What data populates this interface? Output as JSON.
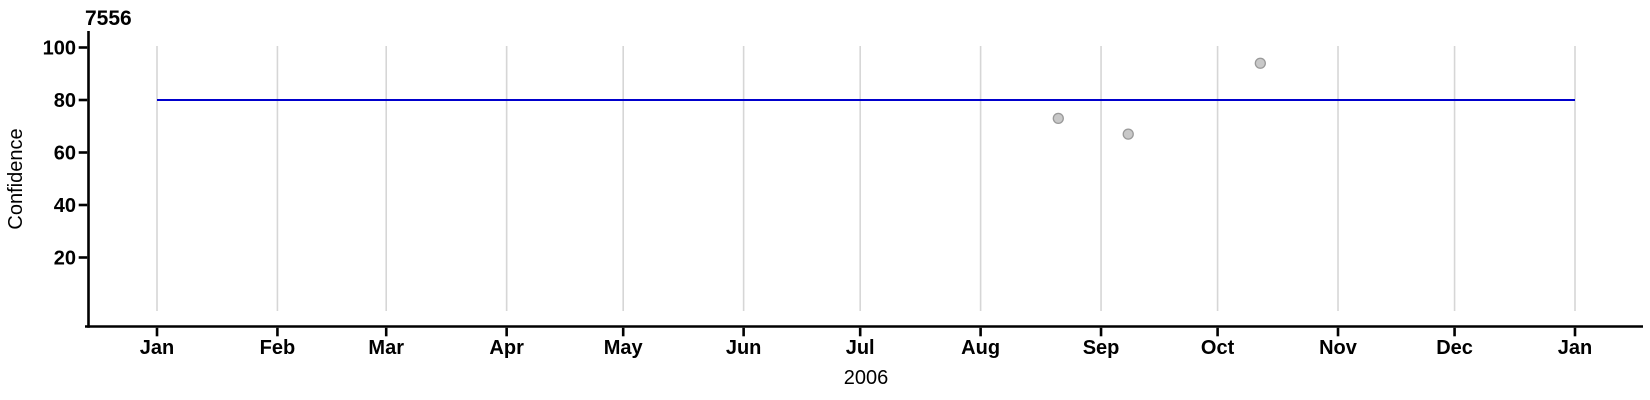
{
  "chart_data": {
    "type": "scatter",
    "title": "7556",
    "xlabel": "2006",
    "ylabel": "Confidence",
    "x_axis": {
      "start_date": "2006-01-01",
      "end_date": "2007-01-01",
      "tick_dates": [
        "2006-01-01",
        "2006-02-01",
        "2006-03-01",
        "2006-04-01",
        "2006-05-01",
        "2006-06-01",
        "2006-07-01",
        "2006-08-01",
        "2006-09-01",
        "2006-10-01",
        "2006-11-01",
        "2006-12-01",
        "2007-01-01"
      ],
      "tick_labels": [
        "Jan",
        "Feb",
        "Mar",
        "Apr",
        "May",
        "Jun",
        "Jul",
        "Aug",
        "Sep",
        "Oct",
        "Nov",
        "Dec",
        "Jan"
      ]
    },
    "y_axis": {
      "ticks": [
        100,
        80,
        60,
        40,
        20
      ],
      "tick_step": 20
    },
    "grid": {
      "show_vertical": true,
      "show_horizontal": false,
      "color": "#d6d6d6"
    },
    "reference_line": {
      "value": 80,
      "from": "2006-01-01",
      "to": "2007-01-01",
      "color": "#0000cd"
    },
    "points": [
      {
        "date": "2006-08-21",
        "value": 73
      },
      {
        "date": "2006-09-08",
        "value": 67
      },
      {
        "date": "2006-10-12",
        "value": 94
      }
    ],
    "point_style": {
      "fill": "#c8c8c8",
      "stroke": "#999999"
    },
    "axis_color": "#000000"
  }
}
